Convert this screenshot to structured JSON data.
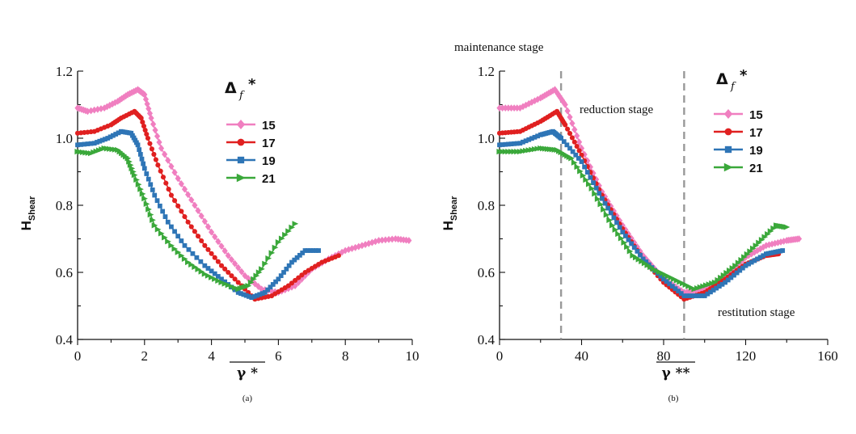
{
  "chart_data": [
    {
      "type": "line",
      "panel_label": "(a)",
      "ylabel": "H",
      "ylabel_sub": "Shear",
      "xlabel": "γ *",
      "xlim": [
        0,
        10
      ],
      "ylim": [
        0.4,
        1.2
      ],
      "xticks": [
        "0",
        "2",
        "4",
        "6",
        "8",
        "10"
      ],
      "yticks": [
        "0.4",
        "0.6",
        "0.8",
        "1.0",
        "1.2"
      ],
      "legend": {
        "title": "Δ",
        "title_sub": "f",
        "title_sup": "*",
        "position": "upper-right"
      },
      "series": [
        {
          "name": "15",
          "color": "#f07fc0",
          "marker": "diamond",
          "points": [
            [
              0,
              1.09
            ],
            [
              0.3,
              1.08
            ],
            [
              0.8,
              1.09
            ],
            [
              1.2,
              1.11
            ],
            [
              1.5,
              1.13
            ],
            [
              1.8,
              1.145
            ],
            [
              2.0,
              1.13
            ],
            [
              2.2,
              1.06
            ],
            [
              2.5,
              0.97
            ],
            [
              3.0,
              0.88
            ],
            [
              3.5,
              0.8
            ],
            [
              4.0,
              0.72
            ],
            [
              4.5,
              0.65
            ],
            [
              5.0,
              0.59
            ],
            [
              5.5,
              0.55
            ],
            [
              6.0,
              0.54
            ],
            [
              6.5,
              0.56
            ],
            [
              7.0,
              0.61
            ],
            [
              7.5,
              0.64
            ],
            [
              8.0,
              0.665
            ],
            [
              8.5,
              0.68
            ],
            [
              9.0,
              0.695
            ],
            [
              9.5,
              0.7
            ],
            [
              9.9,
              0.695
            ]
          ]
        },
        {
          "name": "17",
          "color": "#e02020",
          "marker": "circle",
          "points": [
            [
              0,
              1.015
            ],
            [
              0.5,
              1.02
            ],
            [
              1.0,
              1.04
            ],
            [
              1.3,
              1.06
            ],
            [
              1.7,
              1.08
            ],
            [
              1.9,
              1.06
            ],
            [
              2.1,
              1.0
            ],
            [
              2.4,
              0.92
            ],
            [
              2.8,
              0.83
            ],
            [
              3.3,
              0.75
            ],
            [
              3.8,
              0.68
            ],
            [
              4.3,
              0.62
            ],
            [
              4.8,
              0.57
            ],
            [
              5.3,
              0.52
            ],
            [
              5.8,
              0.53
            ],
            [
              6.3,
              0.56
            ],
            [
              6.8,
              0.6
            ],
            [
              7.3,
              0.63
            ],
            [
              7.8,
              0.65
            ]
          ]
        },
        {
          "name": "19",
          "color": "#2e75b6",
          "marker": "square",
          "points": [
            [
              0,
              0.98
            ],
            [
              0.5,
              0.985
            ],
            [
              0.9,
              1.0
            ],
            [
              1.3,
              1.02
            ],
            [
              1.6,
              1.015
            ],
            [
              1.8,
              0.98
            ],
            [
              2.0,
              0.91
            ],
            [
              2.3,
              0.83
            ],
            [
              2.7,
              0.75
            ],
            [
              3.2,
              0.68
            ],
            [
              3.8,
              0.62
            ],
            [
              4.3,
              0.58
            ],
            [
              4.8,
              0.54
            ],
            [
              5.2,
              0.525
            ],
            [
              5.6,
              0.54
            ],
            [
              6.0,
              0.58
            ],
            [
              6.4,
              0.63
            ],
            [
              6.8,
              0.665
            ],
            [
              7.2,
              0.665
            ]
          ]
        },
        {
          "name": "21",
          "color": "#3aa83a",
          "marker": "triangle-right",
          "points": [
            [
              0,
              0.96
            ],
            [
              0.4,
              0.955
            ],
            [
              0.8,
              0.97
            ],
            [
              1.2,
              0.965
            ],
            [
              1.5,
              0.94
            ],
            [
              1.7,
              0.89
            ],
            [
              2.0,
              0.82
            ],
            [
              2.3,
              0.74
            ],
            [
              2.8,
              0.68
            ],
            [
              3.3,
              0.63
            ],
            [
              3.8,
              0.595
            ],
            [
              4.3,
              0.57
            ],
            [
              4.8,
              0.55
            ],
            [
              5.1,
              0.56
            ],
            [
              5.5,
              0.61
            ],
            [
              6.0,
              0.69
            ],
            [
              6.5,
              0.745
            ]
          ]
        }
      ]
    },
    {
      "type": "line",
      "panel_label": "(b)",
      "ylabel": "H",
      "ylabel_sub": "Shear",
      "xlabel": "γ **",
      "xlim": [
        0,
        160
      ],
      "ylim": [
        0.4,
        1.2
      ],
      "xticks": [
        "0",
        "40",
        "80",
        "120",
        "160"
      ],
      "yticks": [
        "0.4",
        "0.6",
        "0.8",
        "1.0",
        "1.2"
      ],
      "vlines": [
        30,
        90
      ],
      "annotations": [
        "maintenance stage",
        "reduction stage",
        "restitution stage"
      ],
      "legend": {
        "title": "Δ",
        "title_sub": "f",
        "title_sup": "*",
        "position": "upper-right"
      },
      "series": [
        {
          "name": "15",
          "color": "#f07fc0",
          "marker": "diamond",
          "points": [
            [
              0,
              1.09
            ],
            [
              10,
              1.09
            ],
            [
              20,
              1.12
            ],
            [
              27,
              1.145
            ],
            [
              32,
              1.1
            ],
            [
              40,
              0.97
            ],
            [
              50,
              0.84
            ],
            [
              60,
              0.74
            ],
            [
              70,
              0.65
            ],
            [
              80,
              0.58
            ],
            [
              90,
              0.54
            ],
            [
              100,
              0.55
            ],
            [
              110,
              0.59
            ],
            [
              120,
              0.645
            ],
            [
              130,
              0.68
            ],
            [
              140,
              0.695
            ],
            [
              146,
              0.7
            ]
          ]
        },
        {
          "name": "17",
          "color": "#e02020",
          "marker": "circle",
          "points": [
            [
              0,
              1.015
            ],
            [
              10,
              1.02
            ],
            [
              20,
              1.05
            ],
            [
              28,
              1.08
            ],
            [
              32,
              1.04
            ],
            [
              40,
              0.95
            ],
            [
              50,
              0.83
            ],
            [
              60,
              0.73
            ],
            [
              70,
              0.64
            ],
            [
              80,
              0.57
            ],
            [
              90,
              0.52
            ],
            [
              100,
              0.54
            ],
            [
              110,
              0.58
            ],
            [
              120,
              0.625
            ],
            [
              130,
              0.65
            ],
            [
              136,
              0.655
            ]
          ]
        },
        {
          "name": "19",
          "color": "#2e75b6",
          "marker": "square",
          "points": [
            [
              0,
              0.98
            ],
            [
              10,
              0.985
            ],
            [
              20,
              1.01
            ],
            [
              26,
              1.02
            ],
            [
              30,
              1.0
            ],
            [
              40,
              0.93
            ],
            [
              50,
              0.82
            ],
            [
              60,
              0.72
            ],
            [
              70,
              0.64
            ],
            [
              80,
              0.58
            ],
            [
              90,
              0.53
            ],
            [
              100,
              0.53
            ],
            [
              110,
              0.57
            ],
            [
              120,
              0.62
            ],
            [
              130,
              0.655
            ],
            [
              138,
              0.665
            ]
          ]
        },
        {
          "name": "21",
          "color": "#3aa83a",
          "marker": "triangle-right",
          "points": [
            [
              0,
              0.96
            ],
            [
              10,
              0.96
            ],
            [
              20,
              0.97
            ],
            [
              28,
              0.965
            ],
            [
              35,
              0.94
            ],
            [
              45,
              0.85
            ],
            [
              55,
              0.74
            ],
            [
              65,
              0.65
            ],
            [
              75,
              0.61
            ],
            [
              85,
              0.58
            ],
            [
              95,
              0.55
            ],
            [
              105,
              0.57
            ],
            [
              115,
              0.62
            ],
            [
              125,
              0.68
            ],
            [
              135,
              0.74
            ],
            [
              140,
              0.735
            ]
          ]
        }
      ]
    }
  ]
}
